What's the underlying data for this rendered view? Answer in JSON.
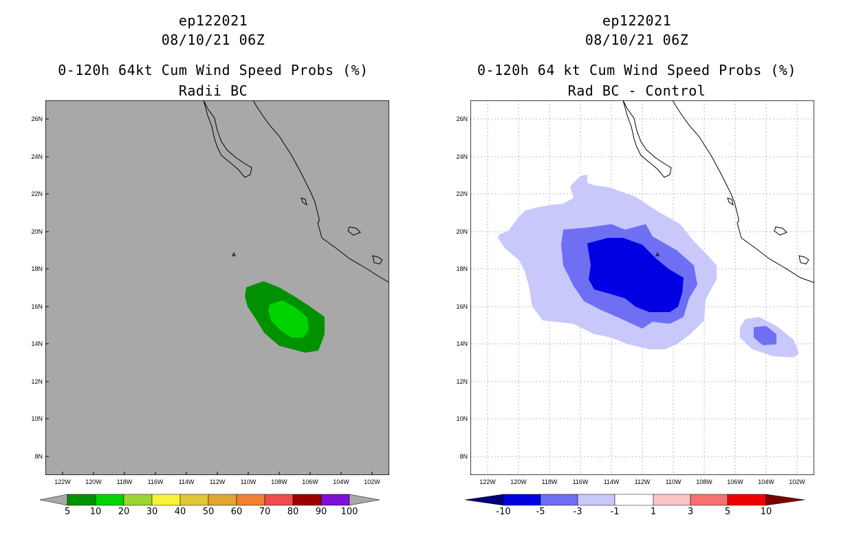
{
  "left": {
    "storm": "ep122021",
    "datetime": "08/10/21 06Z",
    "product": "0-120h 64kt Cum Wind Speed Probs (%)",
    "subtitle": "Radii BC",
    "colorbar": {
      "labels": [
        "5",
        "10",
        "20",
        "30",
        "40",
        "50",
        "60",
        "70",
        "80",
        "90",
        "100"
      ],
      "colors": [
        "#009100",
        "#00d300",
        "#9ed336",
        "#f7f33b",
        "#e0c737",
        "#e1a632",
        "#f0802f",
        "#f04b4e",
        "#9a0000",
        "#7d0fd6"
      ],
      "end_color": "#a8a8a8"
    }
  },
  "right": {
    "storm": "ep122021",
    "datetime": "08/10/21 06Z",
    "product": "0-120h 64 kt Cum Wind Speed Probs (%)",
    "subtitle": "Rad BC - Control",
    "colorbar": {
      "labels": [
        "-10",
        "-5",
        "-3",
        "-1",
        "1",
        "3",
        "5",
        "10"
      ],
      "colors": [
        "#0000e3",
        "#6f6ff3",
        "#c8c8fb",
        "#ffffff",
        "#fcc4c4",
        "#f77070",
        "#ee0000"
      ],
      "end_left": "#00007b",
      "end_right": "#7a0000"
    }
  },
  "axes": {
    "lat_labels": [
      "26N",
      "24N",
      "22N",
      "20N",
      "18N",
      "16N",
      "14N",
      "12N",
      "10N",
      "8N"
    ],
    "lon_labels": [
      "122W",
      "120W",
      "118W",
      "116W",
      "114W",
      "112W",
      "110W",
      "108W",
      "106W",
      "104W",
      "102W"
    ]
  },
  "fields": {
    "left": [
      {
        "level": "5-10",
        "color": "#009100"
      },
      {
        "level": "10-20",
        "color": "#00d300"
      }
    ],
    "right_neg": [
      {
        "level": "-3 to -1",
        "color": "#c8c8fb"
      },
      {
        "level": "-5 to -3",
        "color": "#6f6ff3"
      },
      {
        "level": "-10 to -5",
        "color": "#0000e3"
      }
    ]
  }
}
